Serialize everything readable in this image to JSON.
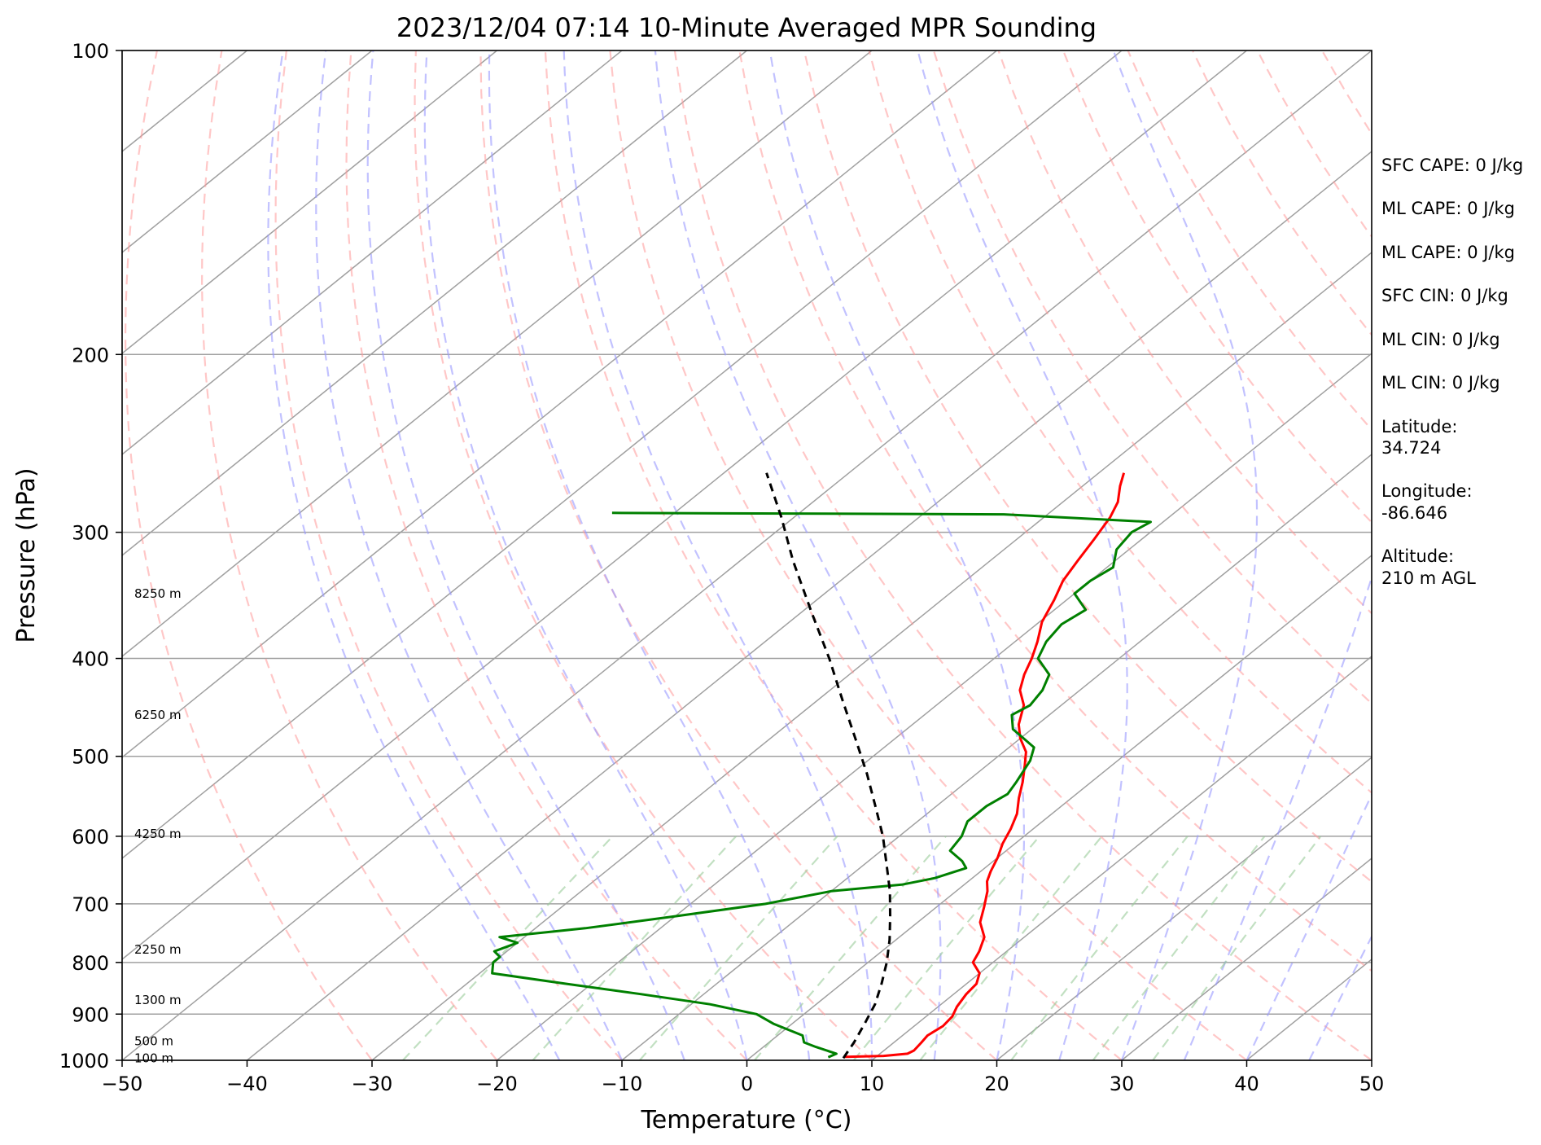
{
  "chart_data": {
    "type": "line",
    "title": "2023/12/04 07:14 10-Minute Averaged MPR Sounding",
    "xlabel": "Temperature (°C)",
    "ylabel": "Pressure (hPa)",
    "x_scale": "linear, skewed (Skew-T)",
    "y_scale": "log, inverted",
    "xlim": [
      -50,
      50
    ],
    "ylim": [
      1000,
      100
    ],
    "grid": true,
    "x_ticks": [
      "−50",
      "−40",
      "−30",
      "−20",
      "−10",
      "0",
      "10",
      "20",
      "30",
      "40",
      "50"
    ],
    "x_tick_values": [
      -50,
      -40,
      -30,
      -20,
      -10,
      0,
      10,
      20,
      30,
      40,
      50
    ],
    "y_ticks": [
      "100",
      "200",
      "300",
      "400",
      "500",
      "600",
      "700",
      "800",
      "900",
      "1000"
    ],
    "y_tick_values": [
      100,
      200,
      300,
      400,
      500,
      600,
      700,
      800,
      900,
      1000
    ],
    "height_labels": [
      {
        "text": "8250 m",
        "p": 345
      },
      {
        "text": "6250 m",
        "p": 455
      },
      {
        "text": "4250 m",
        "p": 597
      },
      {
        "text": "2250 m",
        "p": 777
      },
      {
        "text": "1300 m",
        "p": 872
      },
      {
        "text": "500 m",
        "p": 957
      },
      {
        "text": "100 m",
        "p": 995
      }
    ],
    "series": [
      {
        "color": "#ff0000",
        "points": [
          [
            992,
            7.5
          ],
          [
            990,
            10.5
          ],
          [
            985,
            12.2
          ],
          [
            978,
            12.4
          ],
          [
            960,
            12.2
          ],
          [
            945,
            12.0
          ],
          [
            925,
            12.3
          ],
          [
            905,
            12.1
          ],
          [
            885,
            11.5
          ],
          [
            860,
            11.0
          ],
          [
            840,
            10.8
          ],
          [
            820,
            10.0
          ],
          [
            800,
            8.4
          ],
          [
            780,
            7.8
          ],
          [
            755,
            6.8
          ],
          [
            730,
            5.0
          ],
          [
            705,
            3.8
          ],
          [
            680,
            2.5
          ],
          [
            665,
            1.5
          ],
          [
            650,
            0.8
          ],
          [
            630,
            0.0
          ],
          [
            610,
            -1.0
          ],
          [
            590,
            -1.8
          ],
          [
            570,
            -2.8
          ],
          [
            550,
            -4.2
          ],
          [
            530,
            -5.5
          ],
          [
            510,
            -7.0
          ],
          [
            495,
            -8.2
          ],
          [
            480,
            -10.0
          ],
          [
            465,
            -11.5
          ],
          [
            445,
            -13.0
          ],
          [
            430,
            -14.8
          ],
          [
            415,
            -16.0
          ],
          [
            400,
            -17.0
          ],
          [
            385,
            -18.2
          ],
          [
            368,
            -19.8
          ],
          [
            350,
            -21.0
          ],
          [
            335,
            -22.2
          ],
          [
            320,
            -23.0
          ],
          [
            305,
            -23.8
          ],
          [
            290,
            -24.7
          ],
          [
            280,
            -25.6
          ],
          [
            270,
            -27.0
          ],
          [
            262,
            -28.0
          ]
        ]
      },
      {
        "color": "#008000",
        "points": [
          [
            993,
            6.2
          ],
          [
            985,
            6.5
          ],
          [
            970,
            4.2
          ],
          [
            960,
            2.8
          ],
          [
            945,
            2.0
          ],
          [
            920,
            -1.5
          ],
          [
            900,
            -3.8
          ],
          [
            880,
            -8.5
          ],
          [
            860,
            -15.0
          ],
          [
            840,
            -22.0
          ],
          [
            820,
            -29.0
          ],
          [
            800,
            -30.0
          ],
          [
            790,
            -30.0
          ],
          [
            780,
            -31.0
          ],
          [
            765,
            -30.0
          ],
          [
            755,
            -32.0
          ],
          [
            740,
            -26.0
          ],
          [
            720,
            -20.0
          ],
          [
            700,
            -14.0
          ],
          [
            680,
            -10.0
          ],
          [
            670,
            -5.0
          ],
          [
            660,
            -3.0
          ],
          [
            645,
            -1.5
          ],
          [
            635,
            -2.5
          ],
          [
            620,
            -4.5
          ],
          [
            600,
            -5.0
          ],
          [
            580,
            -6.0
          ],
          [
            560,
            -6.0
          ],
          [
            545,
            -5.5
          ],
          [
            530,
            -6.0
          ],
          [
            505,
            -7.0
          ],
          [
            490,
            -8.0
          ],
          [
            470,
            -11.5
          ],
          [
            455,
            -13.0
          ],
          [
            445,
            -12.5
          ],
          [
            430,
            -13.0
          ],
          [
            415,
            -14.0
          ],
          [
            400,
            -16.5
          ],
          [
            385,
            -17.5
          ],
          [
            370,
            -18.0
          ],
          [
            358,
            -17.5
          ],
          [
            345,
            -20.0
          ],
          [
            335,
            -20.0
          ],
          [
            325,
            -19.5
          ],
          [
            312,
            -21.0
          ],
          [
            300,
            -21.5
          ],
          [
            293,
            -21.0
          ],
          [
            288,
            -33.5
          ],
          [
            287,
            -65.0
          ]
        ]
      },
      {
        "color": "#000000",
        "dashed": true,
        "points": [
          [
            995,
            7.5
          ],
          [
            960,
            6.8
          ],
          [
            920,
            5.8
          ],
          [
            880,
            4.7
          ],
          [
            840,
            3.2
          ],
          [
            800,
            1.5
          ],
          [
            760,
            -0.5
          ],
          [
            720,
            -2.8
          ],
          [
            680,
            -5.3
          ],
          [
            640,
            -8.2
          ],
          [
            600,
            -11.3
          ],
          [
            560,
            -14.9
          ],
          [
            520,
            -18.8
          ],
          [
            480,
            -23.2
          ],
          [
            440,
            -28.0
          ],
          [
            400,
            -33.2
          ],
          [
            360,
            -39.2
          ],
          [
            320,
            -45.8
          ],
          [
            290,
            -51.0
          ],
          [
            262,
            -56.6
          ]
        ]
      }
    ]
  },
  "side_panel": {
    "lines": [
      "SFC CAPE: 0 J/kg",
      "ML CAPE: 0 J/kg",
      "ML CAPE: 0 J/kg",
      "SFC CIN: 0 J/kg",
      "ML CIN: 0 J/kg",
      "ML CIN: 0 J/kg",
      "Latitude:",
      "34.724",
      "Longitude:",
      "-86.646",
      "Altitude:",
      "210 m AGL"
    ]
  },
  "colors": {
    "temperature": "#ff0000",
    "dewpoint": "#008000",
    "parcel": "#000000",
    "dry_adiabats": "#ff9999",
    "moist_adiabats": "#9999ff",
    "mixing_ratio": "#99cc99",
    "isotherms": "#a0a0a0"
  }
}
